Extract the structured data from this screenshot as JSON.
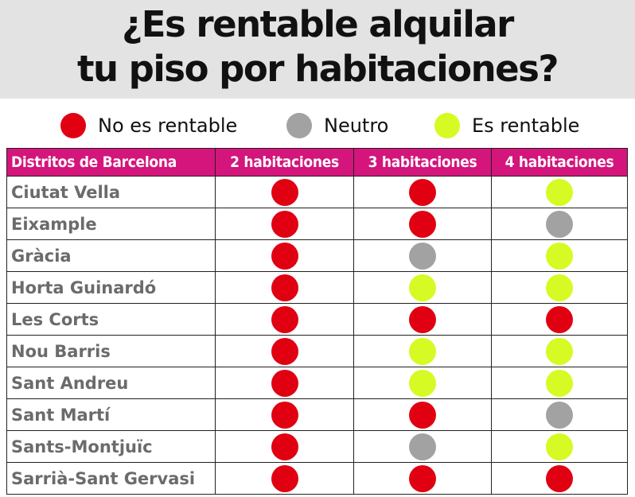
{
  "title": {
    "line1": "¿Es rentable alquilar",
    "line2": "tu piso por habitaciones?"
  },
  "legend": [
    {
      "key": "no",
      "label": "No es rentable",
      "color": "#e00012"
    },
    {
      "key": "neutral",
      "label": "Neutro",
      "color": "#a2a2a2"
    },
    {
      "key": "yes",
      "label": "Es rentable",
      "color": "#d6fa24"
    }
  ],
  "chart_data": {
    "type": "table",
    "columns": [
      "Distritos de Barcelona",
      "2 habitaciones",
      "3 habitaciones",
      "4 habitaciones"
    ],
    "rows": [
      {
        "district": "Ciutat Vella",
        "values": [
          "no",
          "no",
          "yes"
        ]
      },
      {
        "district": "Eixample",
        "values": [
          "no",
          "no",
          "neutral"
        ]
      },
      {
        "district": "Gràcia",
        "values": [
          "no",
          "neutral",
          "yes"
        ]
      },
      {
        "district": "Horta Guinardó",
        "values": [
          "no",
          "yes",
          "yes"
        ]
      },
      {
        "district": "Les Corts",
        "values": [
          "no",
          "no",
          "no"
        ]
      },
      {
        "district": "Nou Barris",
        "values": [
          "no",
          "yes",
          "yes"
        ]
      },
      {
        "district": "Sant Andreu",
        "values": [
          "no",
          "yes",
          "yes"
        ]
      },
      {
        "district": "Sant Martí",
        "values": [
          "no",
          "no",
          "neutral"
        ]
      },
      {
        "district": "Sants-Montjuïc",
        "values": [
          "no",
          "neutral",
          "yes"
        ]
      },
      {
        "district": "Sarrià-Sant Gervasi",
        "values": [
          "no",
          "no",
          "no"
        ]
      }
    ]
  },
  "colors": {
    "header_bg": "#d4157b",
    "title_band": "#e3e3e3"
  }
}
